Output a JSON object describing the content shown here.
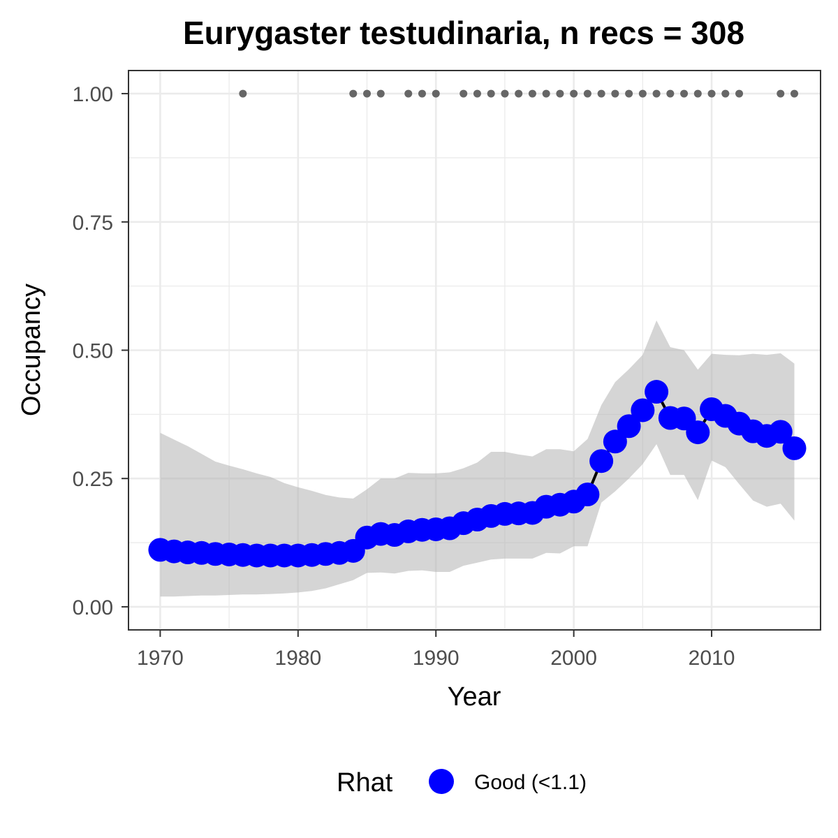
{
  "chart_data": {
    "type": "line",
    "title": "Eurygaster testudinaria, n recs = 308",
    "xlabel": "Year",
    "ylabel": "Occupancy",
    "xlim": [
      1967.7,
      2017.9
    ],
    "ylim": [
      -0.045,
      1.045
    ],
    "x_ticks": [
      1970,
      1980,
      1990,
      2000,
      2010
    ],
    "x_tick_labels": [
      "1970",
      "1980",
      "1990",
      "2000",
      "2010"
    ],
    "y_ticks": [
      0,
      0.25,
      0.5,
      0.75,
      1.0
    ],
    "y_tick_labels": [
      "0.00",
      "0.25",
      "0.50",
      "0.75",
      "1.00"
    ],
    "grid": true,
    "legend_position": "bottom",
    "colors": {
      "line": "#000000",
      "points": "#0000ff",
      "ribbon": "#b3b3b3",
      "records": "#666666",
      "grid": "#ebebeb",
      "panel_border": "#333333"
    },
    "series": [
      {
        "name": "Good (<1.1)",
        "x": [
          1970,
          1971,
          1972,
          1973,
          1974,
          1975,
          1976,
          1977,
          1978,
          1979,
          1980,
          1981,
          1982,
          1983,
          1984,
          1985,
          1986,
          1987,
          1988,
          1989,
          1990,
          1991,
          1992,
          1993,
          1994,
          1995,
          1996,
          1997,
          1998,
          1999,
          2000,
          2001,
          2002,
          2003,
          2004,
          2005,
          2006,
          2007,
          2008,
          2009,
          2010,
          2011,
          2012,
          2013,
          2014,
          2015,
          2016
        ],
        "y": [
          0.111,
          0.108,
          0.106,
          0.105,
          0.103,
          0.102,
          0.101,
          0.1,
          0.1,
          0.1,
          0.1,
          0.101,
          0.103,
          0.105,
          0.109,
          0.135,
          0.142,
          0.14,
          0.147,
          0.15,
          0.151,
          0.153,
          0.163,
          0.17,
          0.177,
          0.181,
          0.182,
          0.183,
          0.195,
          0.199,
          0.205,
          0.219,
          0.284,
          0.322,
          0.352,
          0.383,
          0.419,
          0.368,
          0.367,
          0.34,
          0.385,
          0.372,
          0.357,
          0.342,
          0.333,
          0.341,
          0.309
        ],
        "lower": [
          0.02,
          0.02,
          0.021,
          0.022,
          0.022,
          0.023,
          0.024,
          0.024,
          0.025,
          0.026,
          0.028,
          0.031,
          0.036,
          0.044,
          0.052,
          0.066,
          0.067,
          0.065,
          0.07,
          0.071,
          0.068,
          0.068,
          0.08,
          0.086,
          0.092,
          0.094,
          0.094,
          0.094,
          0.105,
          0.104,
          0.118,
          0.118,
          0.203,
          0.225,
          0.25,
          0.278,
          0.317,
          0.257,
          0.257,
          0.208,
          0.285,
          0.272,
          0.239,
          0.207,
          0.195,
          0.201,
          0.168
        ],
        "upper": [
          0.339,
          0.326,
          0.313,
          0.298,
          0.283,
          0.275,
          0.268,
          0.26,
          0.253,
          0.241,
          0.233,
          0.226,
          0.218,
          0.213,
          0.211,
          0.229,
          0.25,
          0.25,
          0.261,
          0.26,
          0.26,
          0.262,
          0.27,
          0.281,
          0.302,
          0.302,
          0.297,
          0.293,
          0.307,
          0.307,
          0.303,
          0.327,
          0.393,
          0.438,
          0.463,
          0.491,
          0.558,
          0.506,
          0.5,
          0.462,
          0.493,
          0.491,
          0.49,
          0.493,
          0.491,
          0.494,
          0.474
        ]
      }
    ],
    "records": {
      "name": "records",
      "x": [
        1976,
        1984,
        1985,
        1986,
        1988,
        1989,
        1990,
        1992,
        1993,
        1994,
        1995,
        1996,
        1997,
        1998,
        1999,
        2000,
        2001,
        2002,
        2003,
        2004,
        2005,
        2006,
        2007,
        2008,
        2009,
        2010,
        2011,
        2012,
        2015,
        2016
      ],
      "y": 1.0
    },
    "legend": {
      "title": "Rhat",
      "entries": [
        "Good (<1.1)"
      ]
    }
  }
}
